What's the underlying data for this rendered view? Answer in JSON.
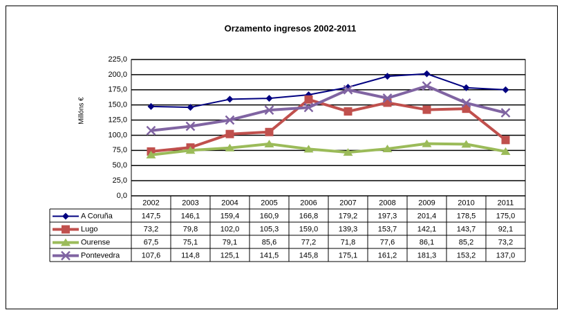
{
  "chart_data": {
    "type": "line",
    "title": "Orzamento ingresos 2002-2011",
    "y_label": "Millóns €",
    "categories": [
      "2002",
      "2003",
      "2004",
      "2005",
      "2006",
      "2007",
      "2008",
      "2009",
      "2010",
      "2011"
    ],
    "ylim": [
      0,
      225
    ],
    "yticks": [
      {
        "value": 0,
        "label": "0,0"
      },
      {
        "value": 25,
        "label": "25,0"
      },
      {
        "value": 50,
        "label": "50,0"
      },
      {
        "value": 75,
        "label": "75,0"
      },
      {
        "value": 100,
        "label": "100,0"
      },
      {
        "value": 125,
        "label": "125,0"
      },
      {
        "value": 150,
        "label": "150,0"
      },
      {
        "value": 175,
        "label": "175,0"
      },
      {
        "value": 200,
        "label": "200,0"
      },
      {
        "value": 225,
        "label": "225,0"
      }
    ],
    "grid": true,
    "series": [
      {
        "name": "A Coruña",
        "color": "#000080",
        "marker": "diamond",
        "values": [
          147.5,
          146.1,
          159.4,
          160.9,
          166.8,
          179.2,
          197.3,
          201.4,
          178.5,
          175.0
        ],
        "value_labels": [
          "147,5",
          "146,1",
          "159,4",
          "160,9",
          "166,8",
          "179,2",
          "197,3",
          "201,4",
          "178,5",
          "175,0"
        ]
      },
      {
        "name": "Lugo",
        "color": "#c0504d",
        "marker": "square",
        "values": [
          73.2,
          79.8,
          102.0,
          105.3,
          159.0,
          139.3,
          153.7,
          142.1,
          143.7,
          92.1
        ],
        "value_labels": [
          "73,2",
          "79,8",
          "102,0",
          "105,3",
          "159,0",
          "139,3",
          "153,7",
          "142,1",
          "143,7",
          "92,1"
        ]
      },
      {
        "name": "Ourense",
        "color": "#9bbb59",
        "marker": "triangle",
        "values": [
          67.5,
          75.1,
          79.1,
          85.6,
          77.2,
          71.8,
          77.6,
          86.1,
          85.2,
          73.2
        ],
        "value_labels": [
          "67,5",
          "75,1",
          "79,1",
          "85,6",
          "77,2",
          "71,8",
          "77,6",
          "86,1",
          "85,2",
          "73,2"
        ]
      },
      {
        "name": "Pontevedra",
        "color": "#8064a2",
        "marker": "x",
        "values": [
          107.6,
          114.8,
          125.1,
          141.5,
          145.8,
          175.1,
          161.2,
          181.3,
          153.2,
          137.0
        ],
        "value_labels": [
          "107,6",
          "114,8",
          "125,1",
          "141,5",
          "145,8",
          "175,1",
          "161,2",
          "181,3",
          "153,2",
          "137,0"
        ]
      }
    ]
  }
}
